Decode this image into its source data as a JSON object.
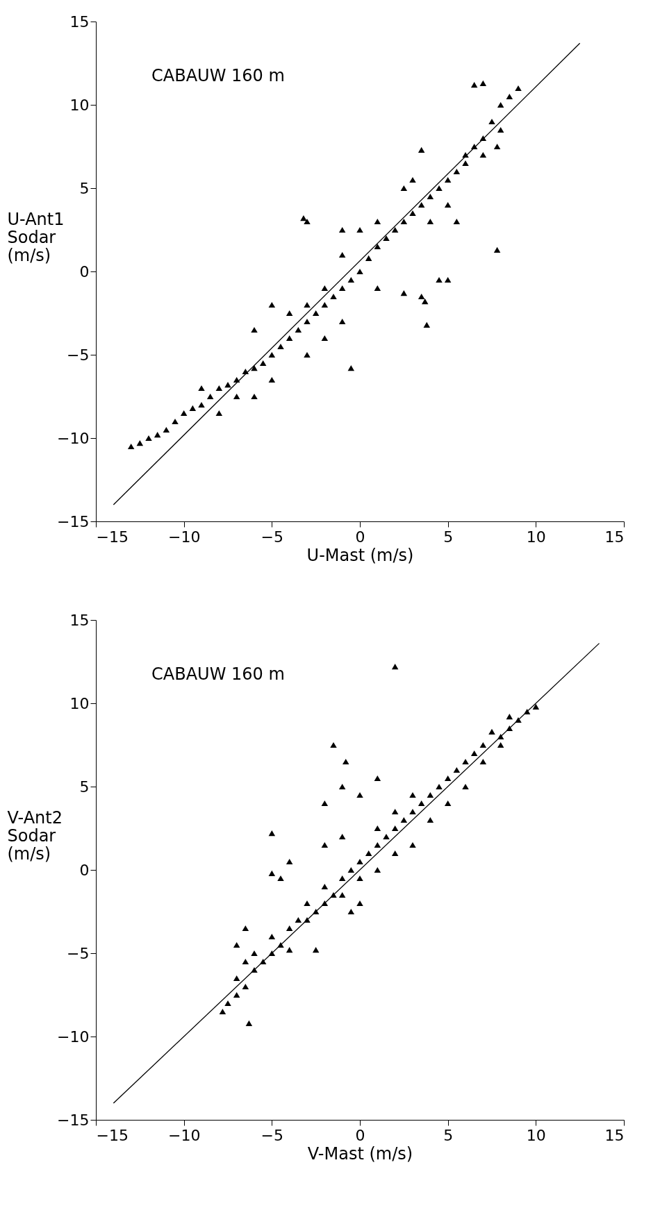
{
  "chart_data": [
    {
      "type": "scatter",
      "annotations": [
        "CABAUW 160 m"
      ],
      "xlabel": "U-Mast (m/s)",
      "ylabel": "U-Ant1\nSodar\n(m/s)",
      "xlim": [
        -15,
        15
      ],
      "ylim": [
        -15,
        15
      ],
      "xticks": [
        -15,
        -10,
        -5,
        0,
        5,
        10,
        15
      ],
      "yticks": [
        -15,
        -10,
        -5,
        0,
        5,
        10,
        15
      ],
      "grid": false,
      "series": [
        {
          "marker": "triangle",
          "color": "#000000",
          "x": [
            -13,
            -12.5,
            -12,
            -11.5,
            -11,
            -10.5,
            -10,
            -9.5,
            -9,
            -8.5,
            -8,
            -7.5,
            -7,
            -6.5,
            -6,
            -5.5,
            -5,
            -4.5,
            -4,
            -3.5,
            -3,
            -2.5,
            -2,
            -1.5,
            -1,
            -0.5,
            0,
            0.5,
            1,
            1.5,
            2,
            2.5,
            3,
            3.5,
            4,
            4.5,
            5,
            5.5,
            6,
            6.5,
            7,
            7.5,
            8,
            8.5,
            9,
            7,
            6.5,
            -9,
            -8,
            -7,
            -6,
            -5,
            -4,
            -3,
            -2,
            -1,
            0,
            1,
            -6,
            -5,
            -3,
            -2,
            -1,
            -0.5,
            -3.2,
            -3,
            -1,
            1,
            3.5,
            2.5,
            4.5,
            5,
            3.8,
            3.7,
            5.5,
            7.8,
            3.5,
            2.5,
            3,
            6,
            7,
            7.8,
            8,
            5,
            4
          ],
          "values": [
            -10.5,
            -10.3,
            -10,
            -9.8,
            -9.5,
            -9,
            -8.5,
            -8.2,
            -8,
            -7.5,
            -7,
            -6.8,
            -6.5,
            -6,
            -5.8,
            -5.5,
            -5,
            -4.5,
            -4,
            -3.5,
            -3,
            -2.5,
            -2,
            -1.5,
            -1,
            -0.5,
            0,
            0.8,
            1.5,
            2,
            2.5,
            3,
            3.5,
            4,
            4.5,
            5,
            5.5,
            6,
            6.5,
            7.5,
            8,
            9,
            10,
            10.5,
            11,
            11.3,
            11.2,
            -7,
            -8.5,
            -7.5,
            -7.5,
            -2,
            -2.5,
            -2,
            -1,
            1,
            2.5,
            3,
            -3.5,
            -6.5,
            -5,
            -4,
            -3,
            -5.8,
            3.2,
            3,
            2.5,
            -1,
            -1.5,
            -1.3,
            -0.5,
            -0.5,
            -3.2,
            -1.8,
            3,
            1.3,
            7.3,
            5,
            5.5,
            7,
            7,
            7.5,
            8.5,
            4,
            3
          ]
        },
        {
          "type": "line",
          "marker": "none",
          "color": "#000000",
          "line_style": "solid",
          "x": [
            -14,
            12.5
          ],
          "values": [
            -14,
            13.7
          ]
        }
      ]
    },
    {
      "type": "scatter",
      "annotations": [
        "CABAUW 160 m"
      ],
      "xlabel": "V-Mast (m/s)",
      "ylabel": "V-Ant2\nSodar\n(m/s)",
      "xlim": [
        -15,
        15
      ],
      "ylim": [
        -15,
        15
      ],
      "xticks": [
        -15,
        -10,
        -5,
        0,
        5,
        10,
        15
      ],
      "yticks": [
        -15,
        -10,
        -5,
        0,
        5,
        10,
        15
      ],
      "grid": false,
      "series": [
        {
          "marker": "triangle",
          "color": "#000000",
          "x": [
            -7.8,
            -7.5,
            -7,
            -7,
            -6.5,
            -6.5,
            -6,
            -6,
            -5.5,
            -5,
            -5,
            -4.5,
            -4,
            -4,
            -3.5,
            -3,
            -3,
            -2.5,
            -2,
            -2,
            -1.5,
            -1,
            -1,
            -0.5,
            0,
            0,
            0.5,
            1,
            1,
            1.5,
            2,
            2,
            2.5,
            3,
            3,
            3.5,
            4,
            4.5,
            5,
            5.5,
            6,
            6.5,
            7,
            7.5,
            8,
            8.5,
            9,
            9.5,
            10,
            8.5,
            -6.3,
            -6.5,
            -7,
            -5,
            -5,
            -4,
            -4.5,
            -2,
            -1.5,
            -0.8,
            -1,
            0,
            1,
            2,
            -1,
            -2,
            -2.5,
            3,
            4,
            5,
            6,
            7,
            8,
            1,
            2,
            0,
            -0.5
          ],
          "values": [
            -8.5,
            -8,
            -7.5,
            -6.5,
            -7,
            -5.5,
            -6,
            -5,
            -5.5,
            -5,
            -4,
            -4.5,
            -3.5,
            -4.8,
            -3,
            -3,
            -2,
            -2.5,
            -2,
            -1,
            -1.5,
            -0.5,
            -1.5,
            0,
            0.5,
            -0.5,
            1,
            1.5,
            2.5,
            2,
            2.5,
            3.5,
            3,
            3.5,
            4.5,
            4,
            4.5,
            5,
            5.5,
            6,
            6.5,
            7,
            7.5,
            8.3,
            7.5,
            8.5,
            9,
            9.5,
            9.8,
            9.2,
            -9.2,
            -3.5,
            -4.5,
            2.2,
            -0.2,
            0.5,
            -0.5,
            4,
            7.5,
            6.5,
            5,
            4.5,
            5.5,
            12.2,
            2,
            1.5,
            -4.8,
            1.5,
            3,
            4,
            5,
            6.5,
            8,
            0,
            1,
            -2,
            -2.5
          ]
        },
        {
          "type": "line",
          "marker": "none",
          "color": "#000000",
          "line_style": "solid",
          "x": [
            -14,
            13.6
          ],
          "values": [
            -14,
            13.6
          ]
        }
      ]
    }
  ]
}
